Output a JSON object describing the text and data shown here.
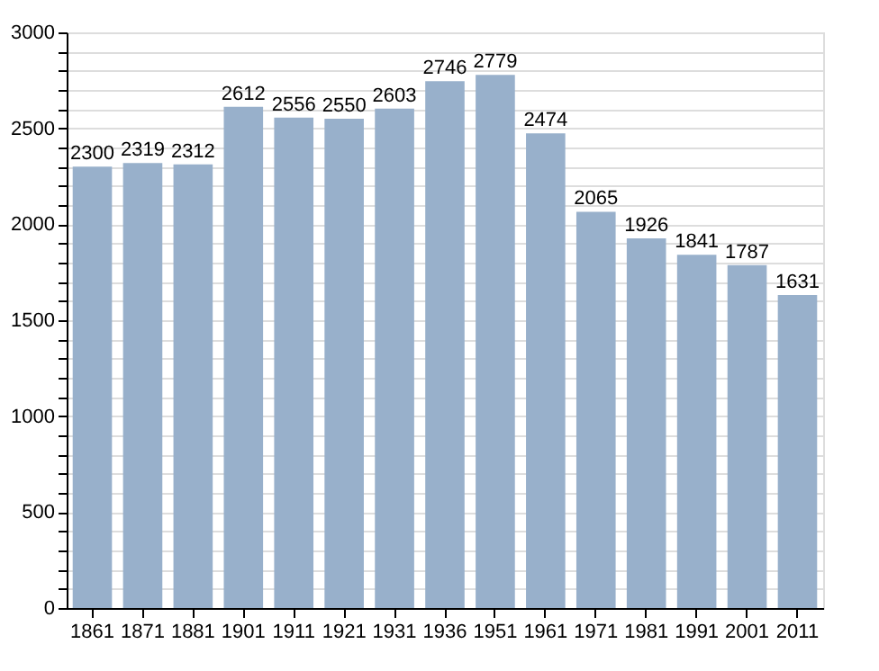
{
  "chart_data": {
    "type": "bar",
    "categories": [
      "1861",
      "1871",
      "1881",
      "1901",
      "1911",
      "1921",
      "1931",
      "1936",
      "1951",
      "1961",
      "1971",
      "1981",
      "1991",
      "2001",
      "2011"
    ],
    "values": [
      2300,
      2319,
      2312,
      2612,
      2556,
      2550,
      2603,
      2746,
      2779,
      2474,
      2065,
      1926,
      1841,
      1787,
      1631
    ],
    "color": "#98b0cb",
    "data_labels": true,
    "grid": "y",
    "ylim": [
      0,
      3000
    ],
    "yticks": [
      0,
      {
        "value": 100,
        "label": null
      },
      {
        "value": 200,
        "label": null
      },
      {
        "value": 300,
        "label": null
      },
      {
        "value": 400,
        "label": null
      },
      500,
      {
        "value": 600,
        "label": null
      },
      {
        "value": 700,
        "label": null
      },
      {
        "value": 800,
        "label": null
      },
      {
        "value": 900,
        "label": null
      },
      1000,
      {
        "value": 1100,
        "label": null
      },
      {
        "value": 1200,
        "label": null
      },
      {
        "value": 1300,
        "label": null
      },
      {
        "value": 1400,
        "label": null
      },
      1500,
      {
        "value": 1600,
        "label": null
      },
      {
        "value": 1700,
        "label": null
      },
      {
        "value": 1800,
        "label": null
      },
      {
        "value": 1900,
        "label": null
      },
      2000,
      {
        "value": 2100,
        "label": null
      },
      {
        "value": 2200,
        "label": null
      },
      {
        "value": 2300,
        "label": null
      },
      {
        "value": 2400,
        "label": null
      },
      2500,
      {
        "value": 2600,
        "label": null
      },
      {
        "value": 2700,
        "label": null
      },
      {
        "value": 2800,
        "label": null
      },
      {
        "value": 2900,
        "label": null
      },
      3000
    ]
  }
}
